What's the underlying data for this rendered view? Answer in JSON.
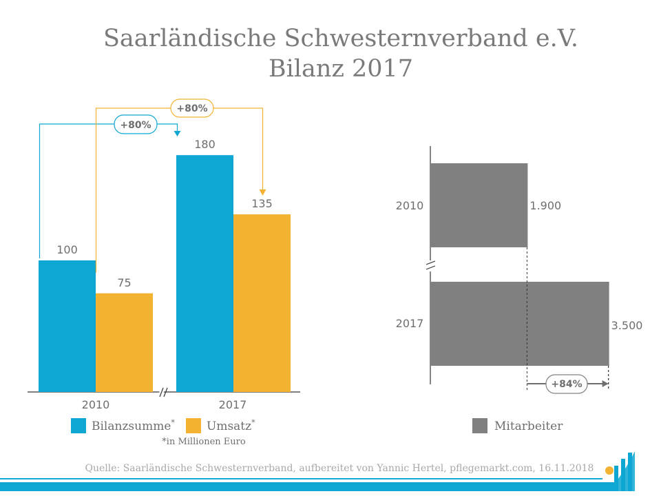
{
  "title_line1": "Saarländische Schwesternverband e.V.",
  "title_line2": "Bilanz 2017",
  "chart_data": [
    {
      "type": "bar",
      "categories": [
        "2010",
        "2017"
      ],
      "series": [
        {
          "name": "Bilanzsumme",
          "values": [
            100,
            180
          ],
          "color": "#0ea7d3"
        },
        {
          "name": "Umsatz",
          "values": [
            75,
            135
          ],
          "color": "#f4b233"
        }
      ],
      "value_labels": [
        "100",
        "75",
        "180",
        "135"
      ],
      "annotations": [
        {
          "text": "+80%",
          "series": "Bilanzsumme",
          "color": "#0ea7d3"
        },
        {
          "text": "+80%",
          "series": "Umsatz",
          "color": "#f4b233"
        }
      ],
      "legend": [
        "Bilanzsumme*",
        "Umsatz*"
      ],
      "legend_parts": {
        "bilanz_name": "Bilanzsumme",
        "umsatz_name": "Umsatz",
        "star": "*"
      },
      "note": "*in Millionen Euro",
      "axis_break": true
    },
    {
      "type": "bar",
      "orientation": "horizontal",
      "categories": [
        "2010",
        "2017"
      ],
      "series": [
        {
          "name": "Mitarbeiter",
          "values": [
            1900,
            3500
          ],
          "color": "#808080"
        }
      ],
      "value_labels": [
        "1.900",
        "3.500"
      ],
      "annotation": "+84%",
      "legend": [
        "Mitarbeiter"
      ],
      "axis_break": true
    }
  ],
  "source": "Quelle: Saarländische Schwesternverband, aufbereitet von Yannic Hertel, pflegemarkt.com, 16.11.2018",
  "colors": {
    "blue": "#0ea7d3",
    "orange": "#f4b233",
    "gray": "#808080",
    "text": "#6e6e6e",
    "logo_yellow": "#f4b233"
  },
  "logo_icon": "pflegemarkt-logo-icon"
}
